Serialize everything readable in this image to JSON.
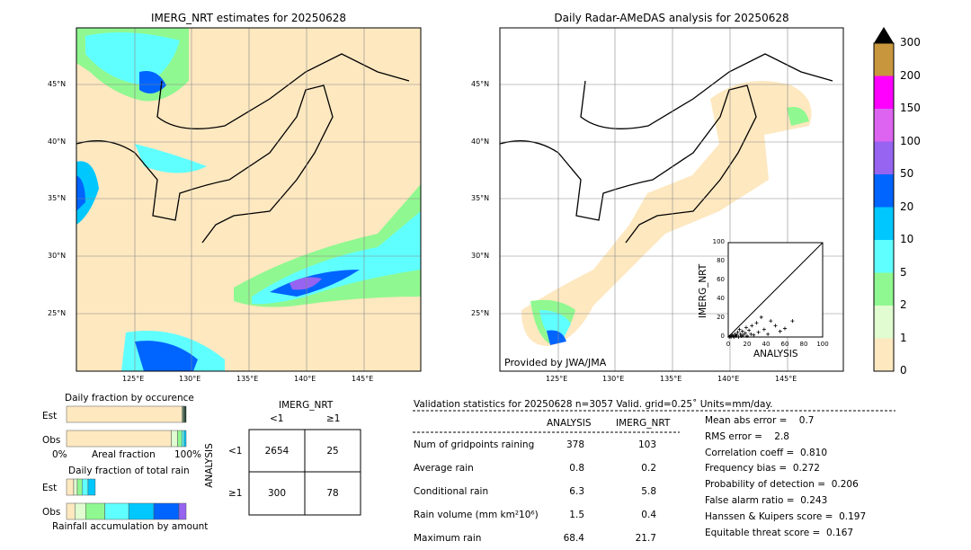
{
  "chart_data": [
    {
      "type": "heatmap",
      "title": "IMERG_NRT estimates for 20250628",
      "lat_ticks": [
        "45°N",
        "40°N",
        "35°N",
        "30°N",
        "25°N"
      ],
      "lon_ticks": [
        "125°E",
        "130°E",
        "135°E",
        "140°E",
        "145°E"
      ]
    },
    {
      "type": "heatmap",
      "title": "Daily Radar-AMeDAS analysis for 20250628",
      "lat_ticks": [
        "45°N",
        "40°N",
        "35°N",
        "30°N",
        "25°N"
      ],
      "lon_ticks": [
        "125°E",
        "130°E",
        "135°E",
        "140°E",
        "145°E"
      ],
      "credit": "Provided by JWA/JMA",
      "inset": {
        "type": "scatter",
        "xlabel": "ANALYSIS",
        "ylabel": "IMERG_NRT",
        "xlim": [
          0,
          100
        ],
        "ylim": [
          0,
          100
        ],
        "ticks": [
          "0",
          "20",
          "40",
          "60",
          "80",
          "100"
        ],
        "points": [
          [
            1,
            0
          ],
          [
            2,
            1
          ],
          [
            3,
            0
          ],
          [
            4,
            2
          ],
          [
            5,
            1
          ],
          [
            6,
            0
          ],
          [
            7,
            3
          ],
          [
            8,
            1
          ],
          [
            9,
            2
          ],
          [
            10,
            5
          ],
          [
            11,
            0
          ],
          [
            12,
            8
          ],
          [
            13,
            3
          ],
          [
            14,
            1
          ],
          [
            15,
            6
          ],
          [
            16,
            2
          ],
          [
            18,
            4
          ],
          [
            19,
            10
          ],
          [
            20,
            1
          ],
          [
            22,
            7
          ],
          [
            24,
            3
          ],
          [
            25,
            12
          ],
          [
            27,
            2
          ],
          [
            30,
            15
          ],
          [
            32,
            5
          ],
          [
            35,
            21
          ],
          [
            38,
            8
          ],
          [
            42,
            3
          ],
          [
            45,
            17
          ],
          [
            50,
            12
          ],
          [
            55,
            6
          ],
          [
            60,
            9
          ],
          [
            68,
            17
          ]
        ]
      }
    },
    {
      "type": "colorbar",
      "levels": [
        "0",
        "1",
        "2",
        "5",
        "10",
        "20",
        "50",
        "100",
        "150",
        "200",
        "300"
      ],
      "colors": [
        "#fee8c0",
        "#e0fcd0",
        "#90f890",
        "#60ffff",
        "#00c8ff",
        "#0064ff",
        "#9664f0",
        "#dc64f0",
        "#ff00ff",
        "#c8963c"
      ]
    },
    {
      "type": "bar",
      "title": "Daily fraction by occurence",
      "rows": [
        "Est",
        "Obs"
      ],
      "xlabel": "Areal fraction",
      "x_left": "0%",
      "x_right": "100%",
      "est": [
        0.966,
        0.008,
        0.006,
        0.01,
        0.01
      ],
      "obs": [
        0.876,
        0.053,
        0.035,
        0.02,
        0.016
      ]
    },
    {
      "type": "bar",
      "title": "Daily fraction of total rain",
      "rows": [
        "Est",
        "Obs"
      ],
      "xlabel": "Rainfall accumulation by amount",
      "est": [
        0.06,
        0.03,
        0.04,
        0.05,
        0.06
      ],
      "obs": [
        0.07,
        0.09,
        0.16,
        0.2,
        0.21,
        0.21,
        0.06
      ]
    }
  ],
  "contingency": {
    "col_title": "IMERG_NRT",
    "row_title": "ANALYSIS",
    "cols": [
      "<1",
      "≥1"
    ],
    "rows": [
      "<1",
      "≥1"
    ],
    "cells": [
      [
        "2654",
        "25"
      ],
      [
        "300",
        "78"
      ]
    ]
  },
  "stats": {
    "header": "Validation statistics for 20250628  n=3057 Valid. grid=0.25˚ Units=mm/day.",
    "cols": [
      "ANALYSIS",
      "IMERG_NRT"
    ],
    "rows": [
      {
        "label": "Num of gridpoints raining",
        "a": "378",
        "b": "103"
      },
      {
        "label": "Average rain",
        "a": "0.8",
        "b": "0.2"
      },
      {
        "label": "Conditional rain",
        "a": "6.3",
        "b": "5.8"
      },
      {
        "label": "Rain volume (mm km²10⁶)",
        "a": "1.5",
        "b": "0.4"
      },
      {
        "label": "Maximum rain",
        "a": "68.4",
        "b": "21.7"
      }
    ],
    "scores": [
      "Mean abs error =    0.7",
      "RMS error =    2.8",
      "Correlation coeff =  0.810",
      "Frequency bias =  0.272",
      "Probability of detection =  0.206",
      "False alarm ratio =  0.243",
      "Hanssen & Kuipers score =  0.197",
      "Equitable threat score =  0.167"
    ]
  }
}
